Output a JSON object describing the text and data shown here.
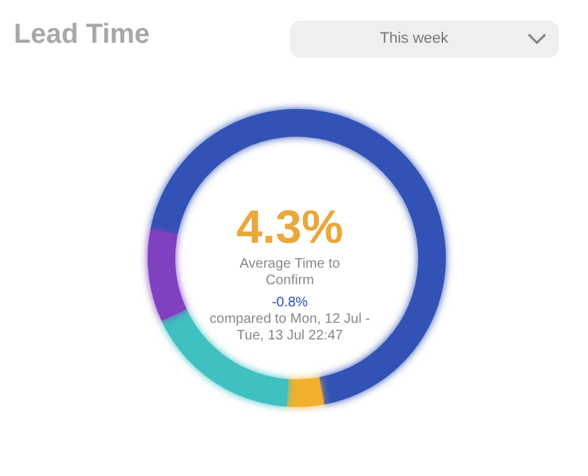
{
  "chart_data": {
    "type": "donut",
    "title": "Lead Time",
    "categories": [
      null,
      null,
      null,
      null
    ],
    "values": [
      69,
      4,
      17,
      10
    ],
    "colors": [
      "#3352b5",
      "#f0b02f",
      "#40c0c0",
      "#8040c0"
    ],
    "annotations": [
      "This week",
      "4.3%",
      "Average Time to Confirm",
      "-0.8%",
      "compared to Mon, 12 Jul - Tue, 13 Jul 22:47"
    ]
  }
}
